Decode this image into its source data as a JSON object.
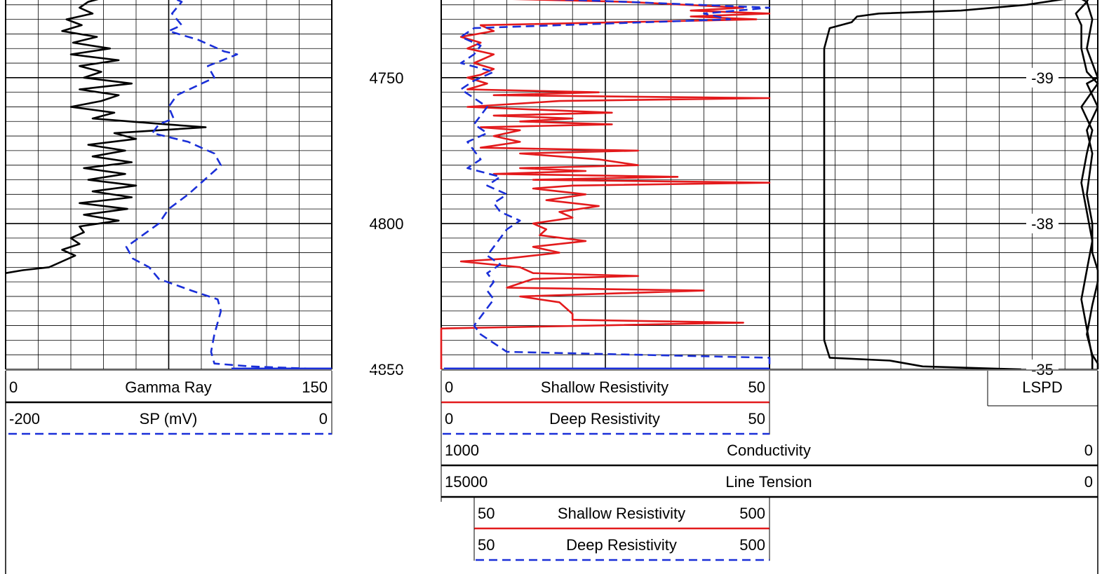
{
  "chart_data": {
    "type": "line",
    "depth_axis": {
      "range": [
        4720,
        4850
      ],
      "ticks": [
        4750,
        4800,
        4850
      ]
    },
    "lspd_ticks": [
      {
        "label": "-39",
        "depth": 4750
      },
      {
        "label": "-38",
        "depth": 4800
      },
      {
        "label": "-35",
        "depth": 4850
      }
    ],
    "headers": {
      "gamma_ray": {
        "min": "0",
        "name": "Gamma Ray",
        "max": "150"
      },
      "sp": {
        "min": "-200",
        "name": "SP (mV)",
        "max": "0"
      },
      "shallow_res": {
        "min": "0",
        "name": "Shallow Resistivity",
        "max": "50"
      },
      "deep_res": {
        "min": "0",
        "name": "Deep Resistivity",
        "max": "50"
      },
      "conductivity": {
        "min": "1000",
        "name": "Conductivity",
        "max": "0"
      },
      "line_tension": {
        "min": "15000",
        "name": "Line Tension",
        "max": "0"
      },
      "shallow_res_backup": {
        "min": "50",
        "name": "Shallow Resistivity",
        "max": "500"
      },
      "deep_res_backup": {
        "min": "50",
        "name": "Deep Resistivity",
        "max": "500"
      },
      "lspd": {
        "name": "LSPD"
      }
    },
    "series": [
      {
        "name": "Gamma Ray",
        "track": 1,
        "scale": [
          0,
          150
        ],
        "color": "#000000",
        "dash": "solid",
        "points": [
          [
            4720,
            60
          ],
          [
            4722,
            48
          ],
          [
            4724,
            38
          ],
          [
            4726,
            34
          ],
          [
            4728,
            40
          ],
          [
            4730,
            28
          ],
          [
            4732,
            35
          ],
          [
            4734,
            26
          ],
          [
            4736,
            42
          ],
          [
            4738,
            31
          ],
          [
            4740,
            48
          ],
          [
            4742,
            30
          ],
          [
            4744,
            52
          ],
          [
            4746,
            34
          ],
          [
            4748,
            44
          ],
          [
            4750,
            36
          ],
          [
            4752,
            58
          ],
          [
            4754,
            34
          ],
          [
            4756,
            52
          ],
          [
            4758,
            44
          ],
          [
            4760,
            30
          ],
          [
            4762,
            50
          ],
          [
            4764,
            40
          ],
          [
            4766,
            74
          ],
          [
            4767,
            92
          ],
          [
            4769,
            50
          ],
          [
            4771,
            60
          ],
          [
            4773,
            38
          ],
          [
            4775,
            55
          ],
          [
            4777,
            40
          ],
          [
            4779,
            58
          ],
          [
            4781,
            36
          ],
          [
            4783,
            55
          ],
          [
            4785,
            38
          ],
          [
            4787,
            60
          ],
          [
            4789,
            40
          ],
          [
            4791,
            58
          ],
          [
            4793,
            34
          ],
          [
            4795,
            56
          ],
          [
            4797,
            36
          ],
          [
            4799,
            52
          ],
          [
            4801,
            34
          ],
          [
            4803,
            36
          ],
          [
            4805,
            30
          ],
          [
            4807,
            34
          ],
          [
            4809,
            26
          ],
          [
            4811,
            32
          ],
          [
            4813,
            26
          ],
          [
            4815,
            20
          ],
          [
            4816,
            8
          ],
          [
            4817,
            0
          ]
        ]
      },
      {
        "name": "SP (mV)",
        "track": 1,
        "scale": [
          -200,
          0
        ],
        "color": "#1a2fd8",
        "dash": "dashed",
        "points": [
          [
            4720,
            -24
          ],
          [
            4722,
            -100
          ],
          [
            4724,
            -92
          ],
          [
            4728,
            -98
          ],
          [
            4732,
            -92
          ],
          [
            4734,
            -100
          ],
          [
            4737,
            -82
          ],
          [
            4741,
            -66
          ],
          [
            4742,
            -58
          ],
          [
            4746,
            -76
          ],
          [
            4750,
            -72
          ],
          [
            4756,
            -95
          ],
          [
            4760,
            -100
          ],
          [
            4764,
            -97
          ],
          [
            4766,
            -106
          ],
          [
            4769,
            -110
          ],
          [
            4772,
            -88
          ],
          [
            4776,
            -72
          ],
          [
            4780,
            -68
          ],
          [
            4785,
            -78
          ],
          [
            4790,
            -88
          ],
          [
            4795,
            -100
          ],
          [
            4800,
            -106
          ],
          [
            4804,
            -116
          ],
          [
            4808,
            -126
          ],
          [
            4812,
            -122
          ],
          [
            4815,
            -112
          ],
          [
            4819,
            -106
          ],
          [
            4823,
            -86
          ],
          [
            4826,
            -70
          ],
          [
            4830,
            -68
          ],
          [
            4834,
            -70
          ],
          [
            4838,
            -72
          ],
          [
            4844,
            -74
          ],
          [
            4848,
            -72
          ],
          [
            4849,
            -50
          ],
          [
            4850,
            -2
          ]
        ]
      },
      {
        "name": "Shallow Resistivity",
        "track": 2,
        "scale": [
          0,
          50
        ],
        "color": "#e31a1c",
        "dash": "solid",
        "points": [
          [
            4720,
            3
          ],
          [
            4721,
            14
          ],
          [
            4722,
            26
          ],
          [
            4723,
            10
          ],
          [
            4724,
            28
          ],
          [
            4726,
            46
          ],
          [
            4727,
            38
          ],
          [
            4728,
            50
          ],
          [
            4729,
            38
          ],
          [
            4730,
            48
          ],
          [
            4732,
            6
          ],
          [
            4734,
            8
          ],
          [
            4736,
            3
          ],
          [
            4738,
            6
          ],
          [
            4740,
            4
          ],
          [
            4742,
            8
          ],
          [
            4745,
            5
          ],
          [
            4747,
            8
          ],
          [
            4749,
            6
          ],
          [
            4750,
            4
          ],
          [
            4752,
            7
          ],
          [
            4754,
            4
          ],
          [
            4755,
            24
          ],
          [
            4756,
            8
          ],
          [
            4757,
            50
          ],
          [
            4758,
            18
          ],
          [
            4760,
            4
          ],
          [
            4762,
            26
          ],
          [
            4763,
            8
          ],
          [
            4764,
            20
          ],
          [
            4765,
            12
          ],
          [
            4766,
            26
          ],
          [
            4767,
            6
          ],
          [
            4768,
            12
          ],
          [
            4770,
            8
          ],
          [
            4772,
            12
          ],
          [
            4774,
            6
          ],
          [
            4775,
            30
          ],
          [
            4776,
            12
          ],
          [
            4778,
            24
          ],
          [
            4780,
            30
          ],
          [
            4781,
            12
          ],
          [
            4782,
            22
          ],
          [
            4783,
            8
          ],
          [
            4784,
            36
          ],
          [
            4785,
            14
          ],
          [
            4786,
            50
          ],
          [
            4787,
            20
          ],
          [
            4788,
            14
          ],
          [
            4790,
            22
          ],
          [
            4792,
            16
          ],
          [
            4794,
            24
          ],
          [
            4796,
            18
          ],
          [
            4798,
            20
          ],
          [
            4800,
            14
          ],
          [
            4802,
            16
          ],
          [
            4804,
            15
          ],
          [
            4806,
            22
          ],
          [
            4808,
            14
          ],
          [
            4810,
            18
          ],
          [
            4812,
            10
          ],
          [
            4813,
            3
          ],
          [
            4815,
            12
          ],
          [
            4817,
            14
          ],
          [
            4818,
            30
          ],
          [
            4819,
            14
          ],
          [
            4822,
            10
          ],
          [
            4823,
            40
          ],
          [
            4825,
            12
          ],
          [
            4827,
            18
          ],
          [
            4831,
            20
          ],
          [
            4833,
            20
          ],
          [
            4834,
            46
          ],
          [
            4836,
            0
          ],
          [
            4840,
            0
          ],
          [
            4850,
            0
          ]
        ]
      },
      {
        "name": "Deep Resistivity",
        "track": 2,
        "scale": [
          0,
          50
        ],
        "color": "#1a2fd8",
        "dash": "dashed",
        "points": [
          [
            4720,
            3
          ],
          [
            4722,
            4
          ],
          [
            4724,
            28
          ],
          [
            4726,
            50
          ],
          [
            4728,
            40
          ],
          [
            4730,
            44
          ],
          [
            4733,
            5
          ],
          [
            4736,
            3
          ],
          [
            4739,
            6
          ],
          [
            4742,
            5
          ],
          [
            4745,
            3
          ],
          [
            4748,
            8
          ],
          [
            4751,
            5
          ],
          [
            4754,
            3
          ],
          [
            4757,
            5
          ],
          [
            4760,
            7
          ],
          [
            4763,
            6
          ],
          [
            4766,
            5
          ],
          [
            4769,
            7
          ],
          [
            4772,
            4
          ],
          [
            4775,
            5
          ],
          [
            4778,
            6
          ],
          [
            4781,
            4
          ],
          [
            4784,
            9
          ],
          [
            4787,
            7
          ],
          [
            4790,
            10
          ],
          [
            4793,
            8
          ],
          [
            4796,
            9
          ],
          [
            4799,
            12
          ],
          [
            4802,
            10
          ],
          [
            4805,
            9
          ],
          [
            4808,
            8
          ],
          [
            4811,
            7
          ],
          [
            4814,
            9
          ],
          [
            4817,
            7
          ],
          [
            4820,
            8
          ],
          [
            4823,
            7
          ],
          [
            4826,
            8
          ],
          [
            4829,
            7
          ],
          [
            4832,
            6
          ],
          [
            4835,
            5
          ],
          [
            4838,
            6
          ],
          [
            4841,
            8
          ],
          [
            4844,
            10
          ],
          [
            4846,
            50
          ],
          [
            4850,
            50
          ]
        ]
      },
      {
        "name": "LSPD",
        "track": 3,
        "scale": [
          -40,
          -34
        ],
        "color": "#000000",
        "dash": "solid",
        "points": [
          [
            4720,
            -34.1
          ],
          [
            4723,
            -34.6
          ],
          [
            4725,
            -35.3
          ],
          [
            4727,
            -36.5
          ],
          [
            4728,
            -38.0
          ],
          [
            4729,
            -38.4
          ],
          [
            4731,
            -38.5
          ],
          [
            4733,
            -38.9
          ],
          [
            4740,
            -39.0
          ],
          [
            4750,
            -39.0
          ],
          [
            4760,
            -39.0
          ],
          [
            4770,
            -39.0
          ],
          [
            4780,
            -39.0
          ],
          [
            4790,
            -39.0
          ],
          [
            4800,
            -39.0
          ],
          [
            4810,
            -39.0
          ],
          [
            4820,
            -39.0
          ],
          [
            4830,
            -39.0
          ],
          [
            4840,
            -39.0
          ],
          [
            4846,
            -38.9
          ],
          [
            4847,
            -37.8
          ],
          [
            4849,
            -37.2
          ],
          [
            4850,
            -35.4
          ]
        ]
      },
      {
        "name": "LSPD",
        "track": 3,
        "scale": [
          -40,
          -34
        ],
        "color": "#000000",
        "dash": "solid",
        "points": [
          [
            4720,
            -36.8
          ],
          [
            4721,
            -36.0
          ],
          [
            4722,
            -34.8
          ],
          [
            4723,
            -34.3
          ],
          [
            4724,
            -34.2
          ],
          [
            4728,
            -34.4
          ],
          [
            4732,
            -34.3
          ],
          [
            4740,
            -34.3
          ],
          [
            4748,
            -34.2
          ],
          [
            4752,
            -34.0
          ],
          [
            4760,
            -34.3
          ],
          [
            4768,
            -34.1
          ],
          [
            4776,
            -34.2
          ],
          [
            4786,
            -34.3
          ],
          [
            4796,
            -34.2
          ],
          [
            4806,
            -34.1
          ],
          [
            4816,
            -34.2
          ],
          [
            4826,
            -34.3
          ],
          [
            4836,
            -34.2
          ],
          [
            4846,
            -34.1
          ],
          [
            4850,
            -34.1
          ]
        ]
      },
      {
        "name": "LSPD",
        "track": 3,
        "scale": [
          -40,
          -34
        ],
        "color": "#000000",
        "dash": "solid",
        "points": [
          [
            4720,
            -34.1
          ],
          [
            4724,
            -34.2
          ],
          [
            4730,
            -34.1
          ],
          [
            4740,
            -34.2
          ],
          [
            4750,
            -34.0
          ],
          [
            4752,
            -34.2
          ],
          [
            4756,
            -34.1
          ],
          [
            4760,
            -34.0
          ],
          [
            4768,
            -34.2
          ],
          [
            4776,
            -34.1
          ],
          [
            4790,
            -34.2
          ],
          [
            4800,
            -34.1
          ],
          [
            4810,
            -34.1
          ],
          [
            4816,
            -34.0
          ],
          [
            4820,
            -34.0
          ],
          [
            4828,
            -34.1
          ],
          [
            4838,
            -34.2
          ],
          [
            4845,
            -34.1
          ],
          [
            4848,
            -34.0
          ],
          [
            4850,
            -34.0
          ]
        ]
      }
    ]
  }
}
